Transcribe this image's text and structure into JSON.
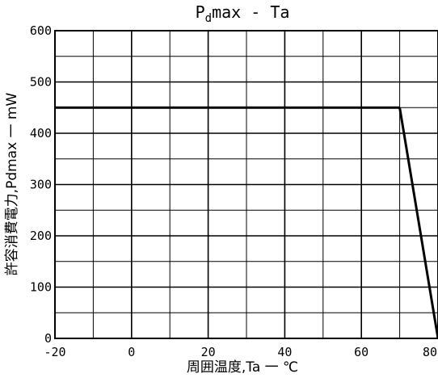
{
  "chart_data": {
    "type": "line",
    "title": "Pdmax - Ta",
    "title_main": "P",
    "title_sub": "d",
    "title_rest": "max - Ta",
    "xlabel": "周囲温度,Ta 一 ℃",
    "ylabel": "許容消費電力,Pdmax 一 mW",
    "xlim": [
      -20,
      80
    ],
    "ylim": [
      0,
      600
    ],
    "x_ticks": [
      -20,
      0,
      20,
      40,
      60,
      80
    ],
    "x_tick_labels": [
      "-20",
      "0",
      "20",
      "40",
      "60",
      "80"
    ],
    "y_ticks": [
      0,
      100,
      200,
      300,
      400,
      500,
      600
    ],
    "y_tick_labels": [
      "0",
      "100",
      "200",
      "300",
      "400",
      "500",
      "600"
    ],
    "grid": true,
    "series": [
      {
        "x": [
          -20,
          70,
          80
        ],
        "y": [
          450,
          450,
          0
        ]
      }
    ]
  }
}
